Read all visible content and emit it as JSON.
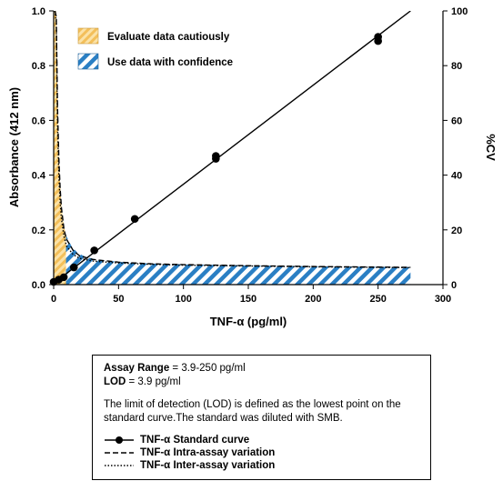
{
  "chart_data": {
    "type": "line",
    "title": "",
    "xlabel": "TNF-α (pg/ml)",
    "ylabel_left": "Absorbance (412 nm)",
    "ylabel_right": "%CV",
    "xlim": [
      0,
      300
    ],
    "ylim_left": [
      0.0,
      1.0
    ],
    "ylim_right": [
      0,
      100
    ],
    "x_ticks": [
      "0",
      "50",
      "100",
      "150",
      "200",
      "250",
      "300"
    ],
    "y_left_ticks": [
      "0.0",
      "0.2",
      "0.4",
      "0.6",
      "0.8",
      "1.0"
    ],
    "y_right_ticks": [
      "0",
      "20",
      "40",
      "60",
      "80",
      "100"
    ],
    "grid": false,
    "bands": [
      {
        "label": "Evaluate data cautiously",
        "x_range": [
          0,
          9.5
        ],
        "color": "#f6c76b"
      },
      {
        "label": "Use data with confidence",
        "x_range": [
          9.5,
          275
        ],
        "color": "#2a7fc4"
      }
    ],
    "series": [
      {
        "name": "TNF-α Standard curve",
        "style": "solid",
        "axis": "left",
        "points": [
          [
            0,
            0.01
          ],
          [
            3.9,
            0.018
          ],
          [
            7.8,
            0.027
          ],
          [
            15.6,
            0.063
          ],
          [
            31.3,
            0.125
          ],
          [
            62.5,
            0.24
          ],
          [
            125,
            0.46
          ],
          [
            125,
            0.47
          ],
          [
            250,
            0.89
          ],
          [
            250,
            0.905
          ]
        ],
        "fit_line": [
          [
            0,
            0.005
          ],
          [
            275,
            1.0
          ]
        ]
      },
      {
        "name": "TNF-α Intra-assay variation",
        "style": "dashed",
        "axis": "right",
        "x": [
          1,
          2,
          3,
          4,
          5,
          6,
          8,
          10,
          15,
          20,
          30,
          50,
          75,
          100,
          150,
          200,
          250,
          275
        ],
        "y": [
          100,
          98,
          64,
          46,
          35,
          28,
          20,
          16.5,
          12.5,
          10.5,
          9.2,
          8.2,
          7.6,
          7.3,
          6.9,
          6.6,
          6.4,
          6.3
        ]
      },
      {
        "name": "TNF-α Inter-assay variation",
        "style": "dotted",
        "axis": "right",
        "x": [
          1,
          2,
          3,
          4,
          5,
          6,
          8,
          10,
          15,
          20,
          30,
          50,
          75,
          100,
          150,
          200,
          250,
          275
        ],
        "y": [
          100,
          96,
          58,
          40,
          30,
          24,
          17.5,
          14,
          11,
          9.6,
          8.6,
          7.9,
          7.4,
          7.1,
          6.8,
          6.5,
          6.3,
          6.2
        ]
      }
    ],
    "cv_envelope": {
      "x": [
        0,
        1,
        2,
        3,
        4,
        5,
        6,
        8,
        10,
        15,
        20,
        30,
        50,
        75,
        100,
        150,
        200,
        250,
        275
      ],
      "y": [
        100,
        100,
        100,
        66,
        47,
        36,
        29,
        21,
        17,
        13,
        11,
        9.4,
        8.3,
        7.7,
        7.4,
        7.0,
        6.7,
        6.5,
        6.4
      ]
    }
  },
  "info": {
    "range_label": "Assay Range",
    "range_value": " = 3.9-250 pg/ml",
    "lod_label": "LOD",
    "lod_value": " = 3.9 pg/ml",
    "note": "The limit of detection (LOD) is defined as the lowest point on the standard curve.The standard was diluted with SMB.",
    "legend": [
      "TNF-α Standard curve",
      "TNF-α Intra-assay variation",
      "TNF-α Inter-assay variation"
    ]
  },
  "colors": {
    "caution": "#f6c76b",
    "confidence": "#2a7fc4",
    "line": "#000000"
  }
}
